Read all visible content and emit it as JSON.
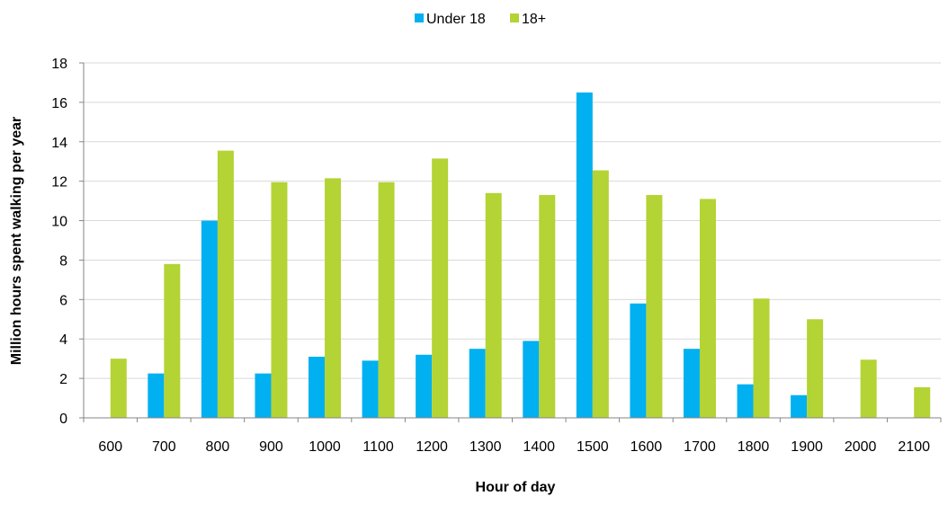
{
  "chart_data": {
    "type": "bar",
    "title": "",
    "xlabel": "Hour of day",
    "ylabel": "Million hours spent walking per year",
    "ylim": [
      0,
      18
    ],
    "yticks": [
      0,
      2,
      4,
      6,
      8,
      10,
      12,
      14,
      16,
      18
    ],
    "grid": true,
    "legend_position": "top",
    "categories": [
      "600",
      "700",
      "800",
      "900",
      "1000",
      "1100",
      "1200",
      "1300",
      "1400",
      "1500",
      "1600",
      "1700",
      "1800",
      "1900",
      "2000",
      "2100"
    ],
    "series": [
      {
        "name": "Under 18",
        "color": "#00b0f0",
        "values": [
          0,
          2.25,
          10,
          2.25,
          3.1,
          2.9,
          3.2,
          3.5,
          3.9,
          16.5,
          5.8,
          3.5,
          1.7,
          1.15,
          0,
          0
        ]
      },
      {
        "name": "18+",
        "color": "#b4d334",
        "values": [
          3.0,
          7.8,
          13.55,
          11.95,
          12.15,
          11.95,
          13.15,
          11.4,
          11.3,
          12.55,
          11.3,
          11.1,
          6.05,
          5.0,
          2.95,
          1.55
        ]
      }
    ]
  },
  "legend": {
    "items": [
      {
        "label": "Under 18",
        "color": "#00b0f0"
      },
      {
        "label": "18+",
        "color": "#b4d334"
      }
    ]
  }
}
